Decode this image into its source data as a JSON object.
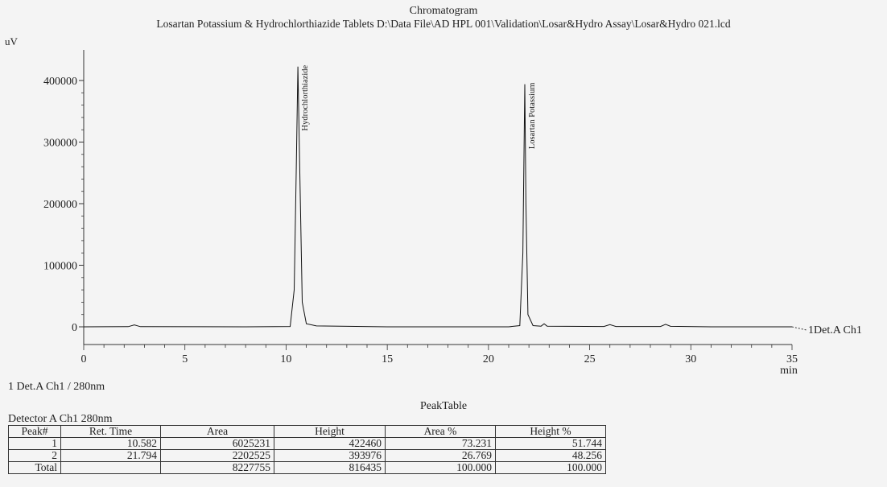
{
  "header": {
    "title": "Chromatogram",
    "subtitle": "Losartan Potassium & Hydrochlorthiazide Tablets D:\\Data File\\AD HPL 001\\Validation\\Losar&Hydro Assay\\Losar&Hydro 021.lcd",
    "y_unit": "uV"
  },
  "chart_data": {
    "type": "line",
    "title": "Chromatogram",
    "xlabel": "min",
    "ylabel": "uV",
    "xlim": [
      0,
      35
    ],
    "ylim": [
      -30000,
      420000
    ],
    "x_ticks": [
      0,
      5,
      10,
      15,
      20,
      25,
      30,
      35
    ],
    "y_ticks": [
      0,
      100000,
      200000,
      300000,
      400000
    ],
    "grid": false,
    "series": [
      {
        "name": "1Det.A Ch1",
        "x": [
          0,
          2.2,
          2.5,
          2.8,
          8,
          10.2,
          10.4,
          10.5,
          10.582,
          10.68,
          10.8,
          11.0,
          11.5,
          15,
          21.0,
          21.55,
          21.7,
          21.794,
          21.85,
          21.95,
          22.2,
          22.6,
          22.75,
          22.9,
          25.7,
          26.0,
          26.3,
          28.5,
          28.75,
          29.0,
          31,
          35
        ],
        "y": [
          0,
          200,
          3000,
          200,
          0,
          500,
          60000,
          250000,
          422460,
          250000,
          40000,
          5000,
          1500,
          0,
          0,
          2000,
          120000,
          393976,
          200000,
          20000,
          2000,
          1000,
          5000,
          1000,
          500,
          3500,
          500,
          500,
          4000,
          800,
          0,
          0
        ]
      }
    ],
    "annotations": [
      {
        "x": 10.582,
        "text": "Hydrochlorthiazide"
      },
      {
        "x": 21.794,
        "text": "Losartan Potassium"
      }
    ]
  },
  "detector_line": "1   Det.A Ch1 / 280nm",
  "peak_table": {
    "title": "PeakTable",
    "detector": "Detector A Ch1 280nm",
    "columns": [
      "Peak#",
      "Ret. Time",
      "Area",
      "Height",
      "Area %",
      "Height %"
    ],
    "rows": [
      [
        "1",
        "10.582",
        "6025231",
        "422460",
        "73.231",
        "51.744"
      ],
      [
        "2",
        "21.794",
        "2202525",
        "393976",
        "26.769",
        "48.256"
      ],
      [
        "Total",
        "",
        "8227755",
        "816435",
        "100.000",
        "100.000"
      ]
    ]
  }
}
